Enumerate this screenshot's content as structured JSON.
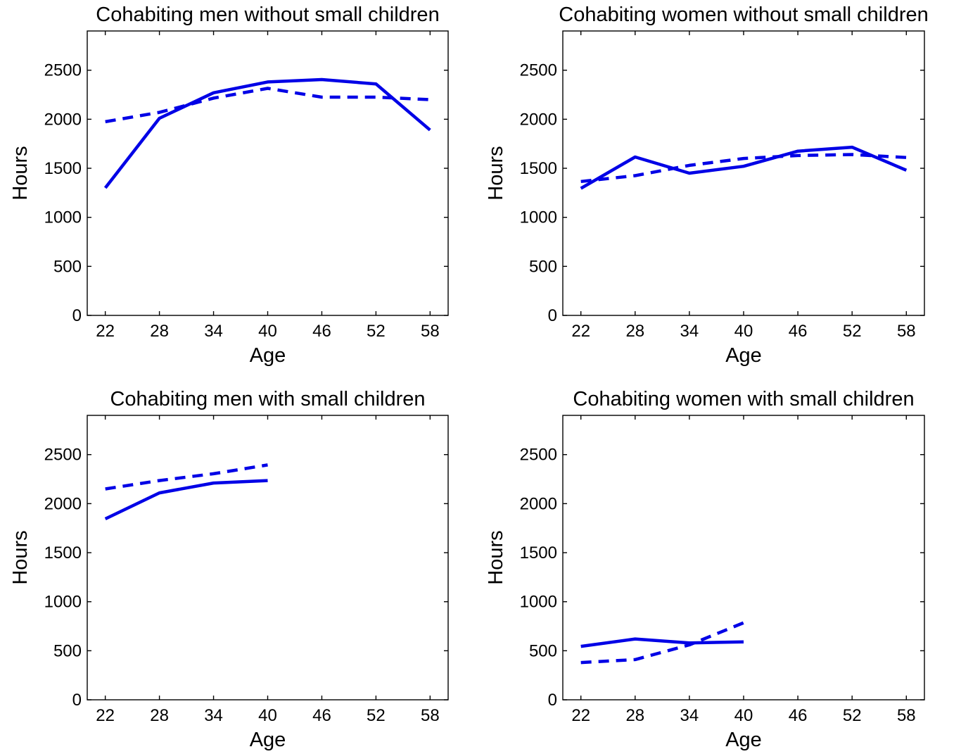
{
  "chart_data": [
    {
      "type": "line",
      "title": "Cohabiting men without small children",
      "xlabel": "Age",
      "ylabel": "Hours",
      "x": [
        22,
        28,
        34,
        40,
        46,
        52,
        58
      ],
      "xticks": [
        "22",
        "28",
        "34",
        "40",
        "46",
        "52",
        "58"
      ],
      "yticks": [
        "0",
        "500",
        "1000",
        "1500",
        "2000",
        "2500"
      ],
      "xlim": [
        20,
        60
      ],
      "ylim": [
        0,
        2900
      ],
      "grid": false,
      "series": [
        {
          "style": "solid",
          "color": "#0000e6",
          "values": [
            1300,
            2010,
            2270,
            2380,
            2405,
            2360,
            1890
          ]
        },
        {
          "style": "dashed",
          "color": "#0000e6",
          "values": [
            1975,
            2070,
            2215,
            2315,
            2225,
            2225,
            2200
          ]
        }
      ]
    },
    {
      "type": "line",
      "title": "Cohabiting women without small children",
      "xlabel": "Age",
      "ylabel": "Hours",
      "x": [
        22,
        28,
        34,
        40,
        46,
        52,
        58
      ],
      "xticks": [
        "22",
        "28",
        "34",
        "40",
        "46",
        "52",
        "58"
      ],
      "yticks": [
        "0",
        "500",
        "1000",
        "1500",
        "2000",
        "2500"
      ],
      "xlim": [
        20,
        60
      ],
      "ylim": [
        0,
        2900
      ],
      "grid": false,
      "series": [
        {
          "style": "solid",
          "color": "#0000e6",
          "values": [
            1295,
            1615,
            1450,
            1520,
            1675,
            1715,
            1480
          ]
        },
        {
          "style": "dashed",
          "color": "#0000e6",
          "values": [
            1365,
            1425,
            1530,
            1600,
            1630,
            1640,
            1610
          ]
        }
      ]
    },
    {
      "type": "line",
      "title": "Cohabiting men with small children",
      "xlabel": "Age",
      "ylabel": "Hours",
      "x": [
        22,
        28,
        34,
        40
      ],
      "xticks": [
        "22",
        "28",
        "34",
        "40",
        "46",
        "52",
        "58"
      ],
      "yticks": [
        "0",
        "500",
        "1000",
        "1500",
        "2000",
        "2500"
      ],
      "xlim": [
        20,
        60
      ],
      "ylim": [
        0,
        2900
      ],
      "grid": false,
      "series": [
        {
          "style": "solid",
          "color": "#0000e6",
          "values": [
            1845,
            2110,
            2210,
            2235
          ]
        },
        {
          "style": "dashed",
          "color": "#0000e6",
          "values": [
            2150,
            2235,
            2305,
            2395
          ]
        }
      ]
    },
    {
      "type": "line",
      "title": "Cohabiting women with small children",
      "xlabel": "Age",
      "ylabel": "Hours",
      "x": [
        22,
        28,
        34,
        40
      ],
      "xticks": [
        "22",
        "28",
        "34",
        "40",
        "46",
        "52",
        "58"
      ],
      "yticks": [
        "0",
        "500",
        "1000",
        "1500",
        "2000",
        "2500"
      ],
      "xlim": [
        20,
        60
      ],
      "ylim": [
        0,
        2900
      ],
      "grid": false,
      "series": [
        {
          "style": "solid",
          "color": "#0000e6",
          "values": [
            545,
            620,
            580,
            590
          ]
        },
        {
          "style": "dashed",
          "color": "#0000e6",
          "values": [
            380,
            410,
            560,
            785
          ]
        }
      ]
    }
  ]
}
